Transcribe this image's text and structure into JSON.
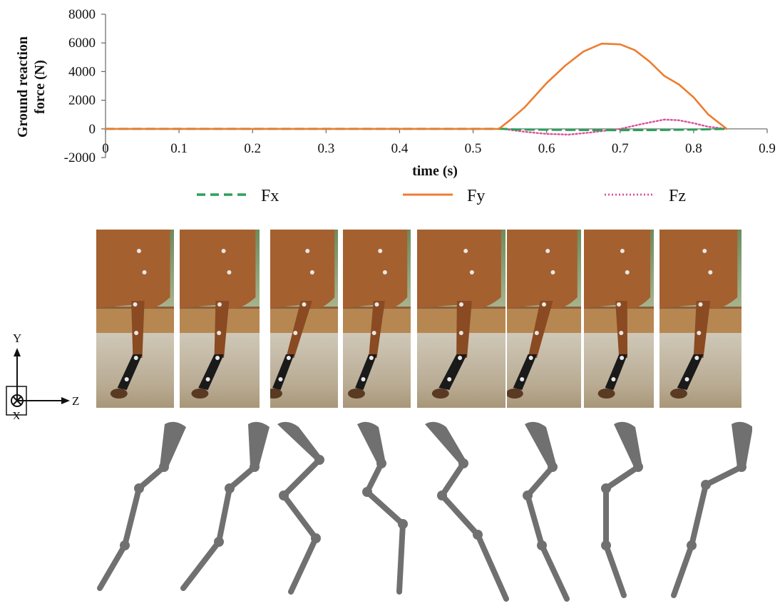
{
  "chart_data": {
    "type": "line",
    "title": "",
    "xlabel": "time (s)",
    "ylabel": "Ground reaction force (N)",
    "ylabel_lines": [
      "Ground reaction",
      "force (N)"
    ],
    "xlim": [
      0,
      0.9
    ],
    "ylim": [
      -2000,
      8000
    ],
    "xticks": [
      0,
      0.1,
      0.2,
      0.3,
      0.4,
      0.5,
      0.6,
      0.7,
      0.8,
      0.9
    ],
    "yticks": [
      -2000,
      0,
      2000,
      4000,
      6000,
      8000
    ],
    "xtick_labels": [
      "0",
      "0.1",
      "0.2",
      "0.3",
      "0.4",
      "0.5",
      "0.6",
      "0.7",
      "0.8",
      "0.9"
    ],
    "ytick_labels": [
      "-2000",
      "0",
      "2000",
      "4000",
      "6000",
      "8000"
    ],
    "grid": false,
    "legend_position": "bottom",
    "series": [
      {
        "name": "Fx",
        "color": "#2ca05a",
        "style": "dashed",
        "x": [
          0,
          0.54,
          0.56,
          0.6,
          0.65,
          0.7,
          0.75,
          0.8,
          0.845
        ],
        "y": [
          0,
          0,
          -40,
          -60,
          -80,
          -90,
          -80,
          -50,
          0
        ]
      },
      {
        "name": "Fy",
        "color": "#ed7d31",
        "style": "solid",
        "x": [
          0,
          0.535,
          0.55,
          0.57,
          0.6,
          0.625,
          0.65,
          0.675,
          0.7,
          0.72,
          0.74,
          0.76,
          0.78,
          0.8,
          0.82,
          0.845
        ],
        "y": [
          0,
          0,
          600,
          1500,
          3200,
          4400,
          5400,
          5950,
          5900,
          5500,
          4700,
          3700,
          3100,
          2200,
          1000,
          0
        ]
      },
      {
        "name": "Fz",
        "color": "#d9509a",
        "style": "dotted",
        "x": [
          0,
          0.54,
          0.57,
          0.6,
          0.63,
          0.66,
          0.7,
          0.73,
          0.76,
          0.78,
          0.8,
          0.82,
          0.845
        ],
        "y": [
          0,
          0,
          -200,
          -350,
          -400,
          -250,
          0,
          350,
          650,
          600,
          400,
          150,
          0
        ]
      }
    ]
  },
  "axes_icon": {
    "y_label": "Y",
    "z_label": "Z",
    "x_label": "X"
  },
  "colors": {
    "horse_coat": "#a5602f",
    "marker": "#e8e8e8",
    "bandage": "#1a1a1a",
    "skeleton": "#707070"
  }
}
